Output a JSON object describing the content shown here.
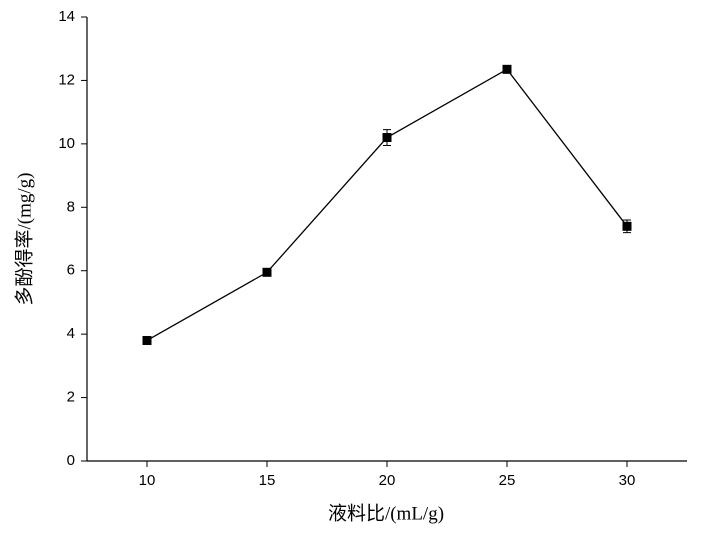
{
  "chart_data": {
    "type": "line",
    "x_label": "液料比/(mL/g)",
    "y_label": "多酚得率/(mg/g)",
    "x": [
      10,
      15,
      20,
      25,
      30
    ],
    "series": [
      {
        "color": "#000000",
        "values": [
          3.8,
          5.95,
          10.2,
          12.35,
          7.4
        ],
        "errors": [
          0.1,
          0.1,
          0.25,
          0.08,
          0.2
        ]
      }
    ],
    "xlim": [
      7.5,
      32.5
    ],
    "xticks": [
      10,
      15,
      20,
      25,
      30
    ],
    "ylim": [
      0,
      14
    ],
    "yticks": [
      0,
      2,
      4,
      6,
      8,
      10,
      12,
      14
    ],
    "grid": false
  }
}
